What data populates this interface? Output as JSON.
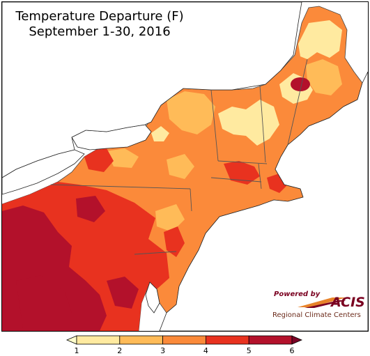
{
  "map": {
    "title": "Temperature Departure (F)",
    "subtitle": "September 1-30, 2016",
    "region": "Northeast United States"
  },
  "credit": {
    "powered_by": "Powered by",
    "brand": "ACIS",
    "org": "Regional Climate Centers"
  },
  "legend": {
    "ticks": [
      "1",
      "2",
      "3",
      "4",
      "5",
      "6"
    ],
    "bins": [
      {
        "range": "1-2",
        "color": "#ffeaa0"
      },
      {
        "range": "2-3",
        "color": "#ffbb58"
      },
      {
        "range": "3-4",
        "color": "#fb8a3a"
      },
      {
        "range": "4-5",
        "color": "#e8321f"
      },
      {
        "range": "5-6",
        "color": "#b3112b"
      }
    ],
    "below_color": "#ffffcc",
    "above_color": "#7a0426"
  },
  "colors": {
    "water": "#ffffff",
    "border": "#444444"
  }
}
